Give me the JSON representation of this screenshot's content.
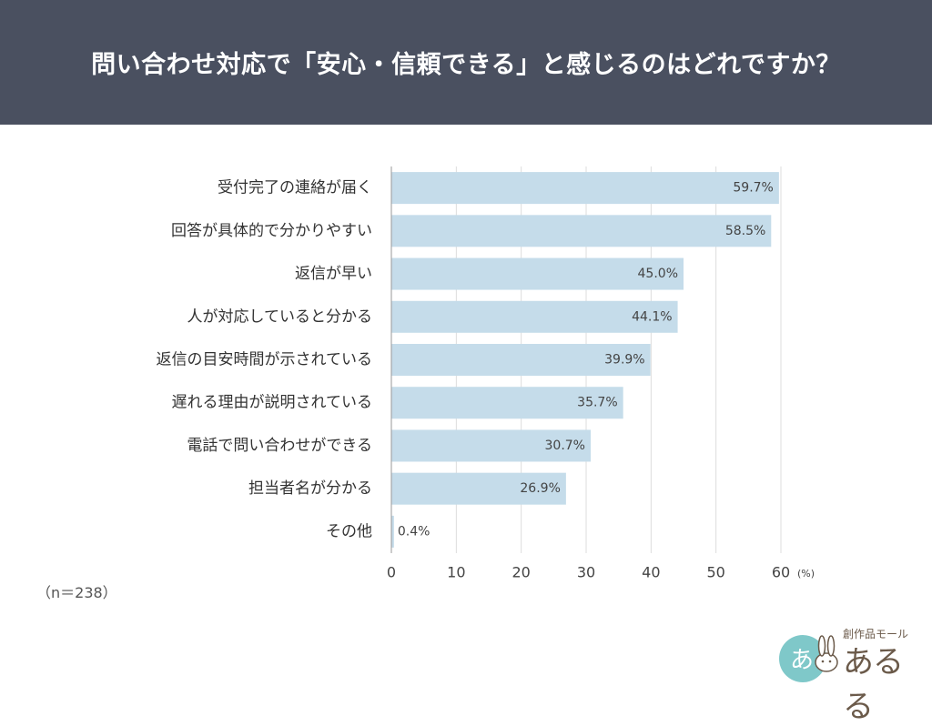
{
  "header": {
    "title": "問い合わせ対応で「安心・信頼できる」と感じるのはどれですか？"
  },
  "chart_data": {
    "type": "bar",
    "orientation": "horizontal",
    "title": "問い合わせ対応で「安心・信頼できる」と感じるのはどれですか？",
    "categories": [
      "受付完了の連絡が届く",
      "回答が具体的で分かりやすい",
      "返信が早い",
      "人が対応していると分かる",
      "返信の目安時間が示されている",
      "遅れる理由が説明されている",
      "電話で問い合わせができる",
      "担当者名が分かる",
      "その他"
    ],
    "values": [
      59.7,
      58.5,
      45.0,
      44.1,
      39.9,
      35.7,
      30.7,
      26.9,
      0.4
    ],
    "value_labels": [
      "59.7%",
      "58.5%",
      "45.0%",
      "44.1%",
      "39.9%",
      "35.7%",
      "30.7%",
      "26.9%",
      "0.4%"
    ],
    "xlim": [
      0,
      60
    ],
    "xticks": [
      0,
      10,
      20,
      30,
      40,
      50,
      60
    ],
    "xlabel": "",
    "xunit": "(%)",
    "ylabel": "",
    "grid": true,
    "bar_color": "#c5dcea"
  },
  "footnote": "（n＝238）",
  "logo": {
    "sub": "創作品モール",
    "name": "あるる",
    "icon": "rabbit-logo-icon",
    "circle_text": "あ"
  }
}
